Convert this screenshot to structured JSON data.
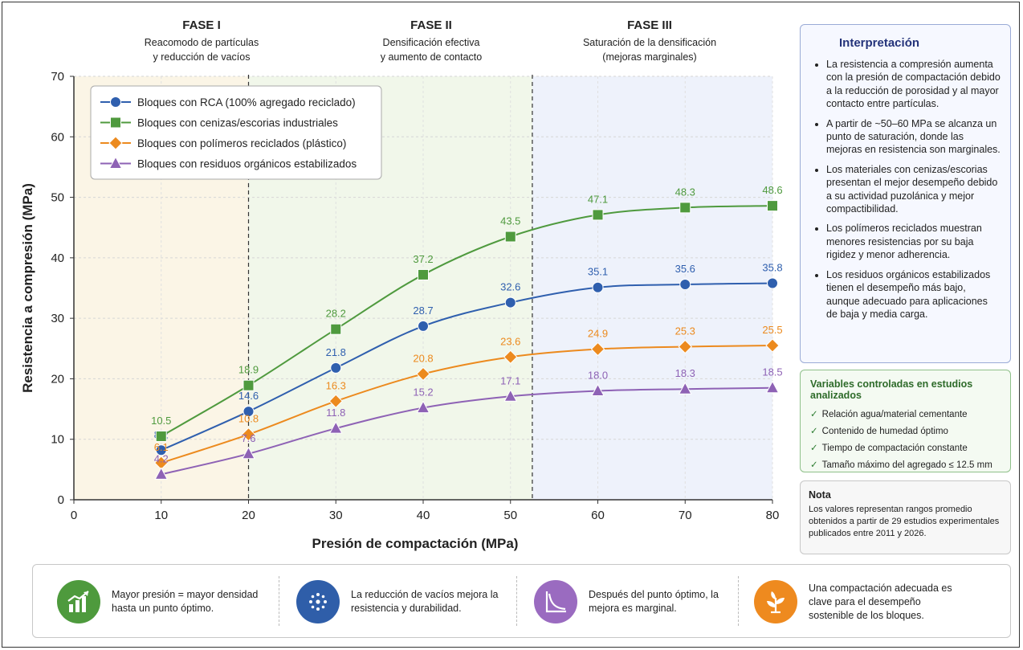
{
  "phases": [
    {
      "title": "FASE I",
      "line1": "Reacomodo de partículas",
      "line2": "y reducción de vacíos"
    },
    {
      "title": "FASE II",
      "line1": "Densificación efectiva",
      "line2": "y aumento de contacto"
    },
    {
      "title": "FASE III",
      "line1": "Saturación de la densificación",
      "line2": "(mejoras marginales)"
    }
  ],
  "colors": {
    "phase1_bg": "#fbf5e6",
    "phase2_bg": "#f1f7ea",
    "phase3_bg": "#eef2fb"
  },
  "chart_data": {
    "type": "line",
    "xlabel": "Presión de compactación (MPa)",
    "ylabel": "Resistencia a compresión (MPa)",
    "xlim": [
      0,
      80
    ],
    "ylim": [
      0,
      70
    ],
    "xticks": [
      0,
      10,
      20,
      30,
      40,
      50,
      60,
      70,
      80
    ],
    "yticks": [
      0,
      10,
      20,
      30,
      40,
      50,
      60,
      70
    ],
    "grid": true,
    "legend_position": "top-left",
    "x": [
      10,
      20,
      30,
      40,
      50,
      60,
      70,
      80
    ],
    "series": [
      {
        "name": "Bloques con RCA (100% agregado reciclado)",
        "marker": "circle",
        "color": "#2f5fae",
        "values": [
          8.2,
          14.6,
          21.8,
          28.7,
          32.6,
          35.1,
          35.6,
          35.8
        ]
      },
      {
        "name": "Bloques con cenizas/escorias industriales",
        "marker": "square",
        "color": "#4f9a3e",
        "values": [
          10.5,
          18.9,
          28.2,
          37.2,
          43.5,
          47.1,
          48.3,
          48.6
        ]
      },
      {
        "name": "Bloques con polímeros reciclados (plástico)",
        "marker": "diamond",
        "color": "#ec8a1e",
        "values": [
          6.1,
          10.8,
          16.3,
          20.8,
          23.6,
          24.9,
          25.3,
          25.5
        ]
      },
      {
        "name": "Bloques con residuos orgánicos estabilizados",
        "marker": "triangle",
        "color": "#8e62b5",
        "values": [
          4.2,
          7.6,
          11.8,
          15.2,
          17.1,
          18.0,
          18.3,
          18.5
        ]
      }
    ]
  },
  "interpretation": {
    "title": "Interpretación",
    "items": [
      "La resistencia a compresión aumenta con la presión de compactación debido a la reducción de porosidad y al mayor contacto entre partículas.",
      "A partir de ~50–60 MPa se alcanza un punto de saturación, donde las mejoras en resistencia son marginales.",
      "Los materiales con cenizas/escorias presentan el mejor desempeño debido a su actividad puzolánica y mejor compactibilidad.",
      "Los polímeros reciclados muestran menores resistencias por su baja rigidez y menor adherencia.",
      "Los residuos orgánicos estabilizados tienen el desempeño más bajo, aunque adecuado para aplicaciones de baja y media carga."
    ]
  },
  "variables": {
    "title": "Variables controladas en estudios analizados",
    "check": "✓",
    "items": [
      "Relación agua/material cementante",
      "Contenido de humedad óptimo",
      "Tiempo de compactación constante",
      "Tamaño máximo del agregado ≤ 12.5 mm"
    ]
  },
  "note": {
    "title": "Nota",
    "text": "Los valores representan rangos promedio obtenidos a partir de 29 estudios experimentales publicados entre 2011 y 2026."
  },
  "bottom": [
    {
      "icon": "chart-up-icon",
      "color": "#4e9a3d",
      "text": "Mayor presión = mayor densidad hasta un punto óptimo."
    },
    {
      "icon": "particles-icon",
      "color": "#2f5ea9",
      "text": "La reducción de vacíos mejora la resistencia y durabilidad."
    },
    {
      "icon": "decay-curve-icon",
      "color": "#9a6bc0",
      "text": "Después del punto óptimo, la mejora es marginal."
    },
    {
      "icon": "leaf-icon",
      "color": "#ee8a1f",
      "text": "Una compactación adecuada es clave para el desempeño sostenible de los bloques."
    }
  ]
}
